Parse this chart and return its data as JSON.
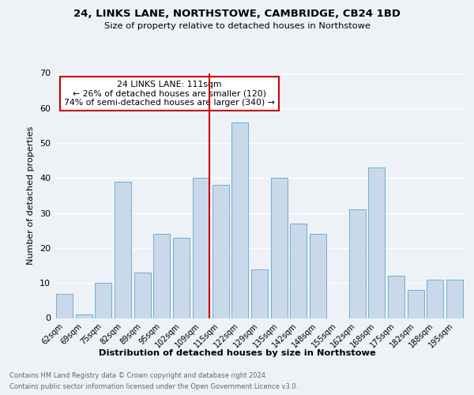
{
  "title": "24, LINKS LANE, NORTHSTOWE, CAMBRIDGE, CB24 1BD",
  "subtitle": "Size of property relative to detached houses in Northstowe",
  "xlabel": "Distribution of detached houses by size in Northstowe",
  "ylabel": "Number of detached properties",
  "categories": [
    "62sqm",
    "69sqm",
    "75sqm",
    "82sqm",
    "89sqm",
    "95sqm",
    "102sqm",
    "109sqm",
    "115sqm",
    "122sqm",
    "129sqm",
    "135sqm",
    "142sqm",
    "148sqm",
    "155sqm",
    "162sqm",
    "168sqm",
    "175sqm",
    "182sqm",
    "188sqm",
    "195sqm"
  ],
  "values": [
    7,
    1,
    10,
    39,
    13,
    24,
    23,
    40,
    38,
    56,
    14,
    40,
    27,
    24,
    0,
    31,
    43,
    12,
    8,
    11,
    11
  ],
  "bar_color": "#c9d9ea",
  "bar_edge_color": "#6baed6",
  "highlight_index": 7,
  "highlight_color": "#cc0000",
  "annotation_text": "24 LINKS LANE: 111sqm\n← 26% of detached houses are smaller (120)\n74% of semi-detached houses are larger (340) →",
  "annotation_box_color": "#ffffff",
  "annotation_box_edge": "#cc0000",
  "ylim": [
    0,
    70
  ],
  "yticks": [
    0,
    10,
    20,
    30,
    40,
    50,
    60,
    70
  ],
  "background_color": "#eef2f7",
  "grid_color": "#ffffff",
  "footer_line1": "Contains HM Land Registry data © Crown copyright and database right 2024.",
  "footer_line2": "Contains public sector information licensed under the Open Government Licence v3.0."
}
